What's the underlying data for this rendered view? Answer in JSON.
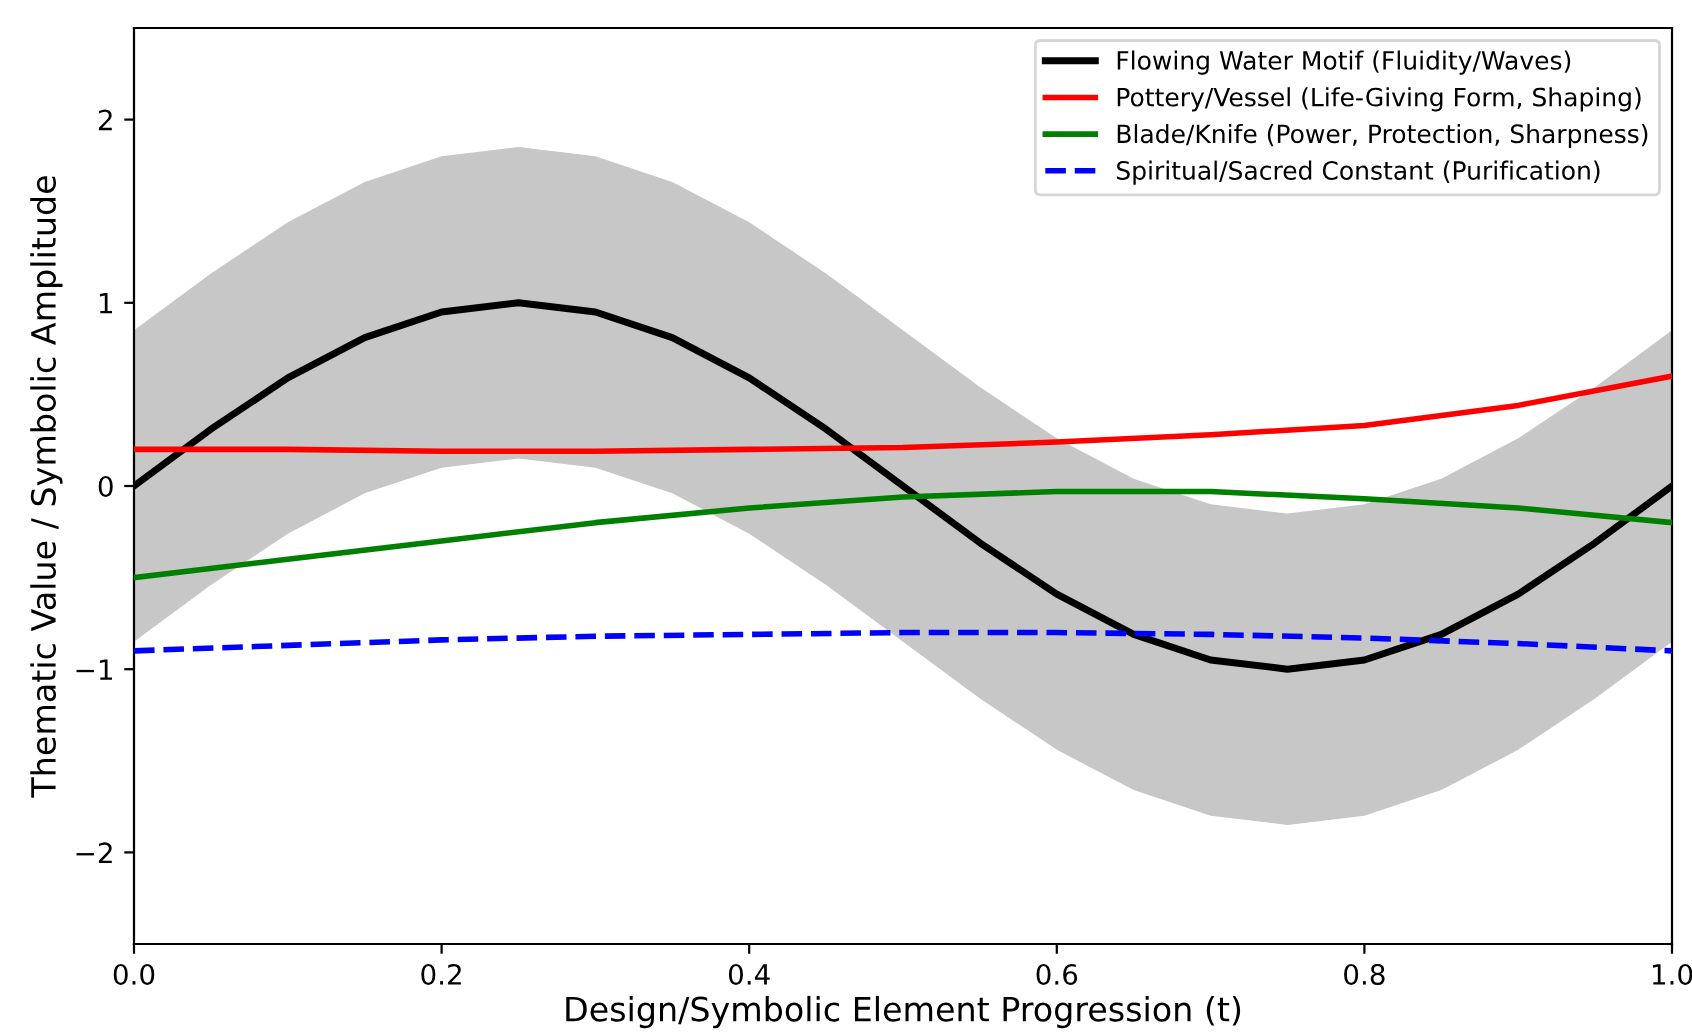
{
  "chart_data": {
    "type": "line",
    "xlabel": "Design/Symbolic Element Progression (t)",
    "ylabel": "Thematic Value / Symbolic Amplitude",
    "x": [
      0,
      0.1,
      0.2,
      0.3,
      0.4,
      0.5,
      0.6,
      0.7,
      0.8,
      0.9,
      1.0
    ],
    "series": [
      {
        "name": "Flowing Water Motif (Fluidity/Waves)",
        "color": "#000000",
        "x": [
          0,
          0.05,
          0.1,
          0.15,
          0.2,
          0.25,
          0.3,
          0.35,
          0.4,
          0.45,
          0.5,
          0.55,
          0.6,
          0.65,
          0.7,
          0.75,
          0.8,
          0.85,
          0.9,
          0.95,
          1.0
        ],
        "values": [
          0,
          0.31,
          0.59,
          0.81,
          0.95,
          1.0,
          0.95,
          0.81,
          0.59,
          0.31,
          0,
          -0.31,
          -0.59,
          -0.81,
          -0.95,
          -1.0,
          -0.95,
          -0.81,
          -0.59,
          -0.31,
          0
        ],
        "lower": [
          -0.85,
          -0.54,
          -0.26,
          -0.04,
          0.1,
          0.15,
          0.1,
          -0.04,
          -0.26,
          -0.54,
          -0.85,
          -1.16,
          -1.44,
          -1.66,
          -1.8,
          -1.85,
          -1.8,
          -1.66,
          -1.44,
          -1.16,
          -0.85
        ],
        "upper": [
          0.85,
          1.16,
          1.44,
          1.66,
          1.8,
          1.85,
          1.8,
          1.66,
          1.44,
          1.16,
          0.85,
          0.54,
          0.26,
          0.04,
          -0.1,
          -0.15,
          -0.1,
          0.04,
          0.26,
          0.54,
          0.85
        ]
      },
      {
        "name": "Pottery/Vessel (Life-Giving Form, Shaping)",
        "color": "#ff0000",
        "values": [
          0.2,
          0.2,
          0.19,
          0.19,
          0.2,
          0.21,
          0.24,
          0.28,
          0.33,
          0.44,
          0.6
        ]
      },
      {
        "name": "Blade/Knife (Power, Protection, Sharpness)",
        "color": "#008000",
        "values": [
          -0.5,
          -0.4,
          -0.3,
          -0.2,
          -0.12,
          -0.06,
          -0.03,
          -0.03,
          -0.07,
          -0.12,
          -0.2
        ]
      },
      {
        "name": "Spiritual/Sacred Constant (Purification)",
        "color": "#0000ff",
        "line_style": "dashed",
        "values": [
          -0.9,
          -0.87,
          -0.84,
          -0.82,
          -0.81,
          -0.8,
          -0.8,
          -0.81,
          -0.83,
          -0.86,
          -0.9
        ]
      }
    ],
    "xlim": [
      0,
      1.0
    ],
    "xticks": [
      {
        "value": 0,
        "label": "0.0"
      },
      0.2,
      0.4,
      0.6,
      0.8,
      {
        "value": 1.0,
        "label": "1.0"
      }
    ],
    "ylim": [
      -2.5,
      2.5
    ],
    "yticks": [
      {
        "value": -2,
        "label": "−2"
      },
      {
        "value": -1,
        "label": "−1"
      },
      0,
      1,
      2
    ],
    "grid": false,
    "legend": "top right",
    "line_style": "solid",
    "marker": "none"
  }
}
